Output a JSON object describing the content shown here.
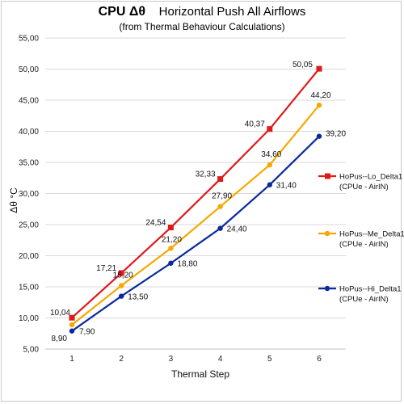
{
  "chart_data": {
    "type": "line",
    "title_bold": "CPU  Δθ",
    "title_rest": "Horizontal Push All Airflows",
    "subtitle": "(from Thermal Behaviour Calculations)",
    "xlabel": "Thermal Step",
    "ylabel": "Δθ °C",
    "x": [
      1,
      2,
      3,
      4,
      5,
      6
    ],
    "ylim": [
      5,
      55
    ],
    "ytick_step": 5,
    "ytick_labels": [
      "5,00",
      "10,00",
      "15,00",
      "20,00",
      "25,00",
      "30,00",
      "35,00",
      "40,00",
      "45,00",
      "50,00",
      "55,00"
    ],
    "grid": "horizontal",
    "legend_position": "right",
    "series": [
      {
        "name": "HoPus--Lo_Delta1",
        "name_sub": "(CPUe - AirIN)",
        "color": "#e01a1a",
        "marker": "square",
        "values": [
          10.04,
          17.21,
          24.54,
          32.33,
          40.37,
          50.05
        ],
        "labels": [
          "10,04",
          "17,21",
          "24,54",
          "32,33",
          "40,37",
          "50,05"
        ]
      },
      {
        "name": "HoPus--Me_Delta1",
        "name_sub": "(CPUe - AirIN)",
        "color": "#f5a800",
        "marker": "circle",
        "values": [
          8.9,
          15.2,
          21.2,
          27.9,
          34.6,
          44.2
        ],
        "labels": [
          "8,90",
          "15,20",
          "21,20",
          "27,90",
          "34,60",
          "44,20"
        ]
      },
      {
        "name": "HoPus--Hi_Delta1",
        "name_sub": "(CPUe - AirIN)",
        "color": "#0a2a9c",
        "marker": "circle",
        "values": [
          7.9,
          13.5,
          18.8,
          24.4,
          31.4,
          39.2
        ],
        "labels": [
          "7,90",
          "13,50",
          "18,80",
          "24,40",
          "31,40",
          "39,20"
        ]
      }
    ]
  }
}
